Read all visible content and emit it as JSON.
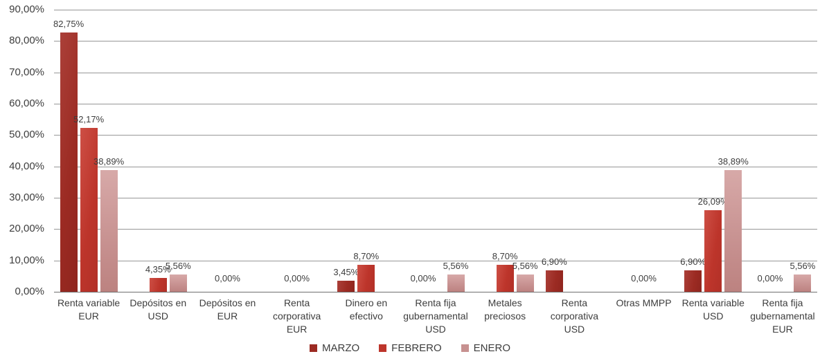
{
  "chart_data": {
    "type": "bar",
    "title": "",
    "xlabel": "",
    "ylabel": "",
    "grid": true,
    "legend_position": "bottom-center",
    "y_axis": {
      "min": 0,
      "max": 90,
      "step": 10,
      "tick_labels": [
        "0,00%",
        "10,00%",
        "20,00%",
        "30,00%",
        "40,00%",
        "50,00%",
        "60,00%",
        "70,00%",
        "80,00%",
        "90,00%"
      ]
    },
    "categories": [
      "Renta variable EUR",
      "Depósitos en USD",
      "Depósitos en EUR",
      "Renta corporativa EUR",
      "Dinero en efectivo",
      "Renta fija gubernamental USD",
      "Metales preciosos",
      "Renta corporativa USD",
      "Otras MMPP",
      "Renta variable USD",
      "Renta fija gubernamental EUR"
    ],
    "series": [
      {
        "name": "MARZO",
        "color": "#9c2b23",
        "values": [
          82.75,
          null,
          null,
          null,
          3.45,
          null,
          null,
          6.9,
          null,
          6.9,
          null
        ],
        "labels": [
          "82,75%",
          null,
          null,
          null,
          "3,45%",
          null,
          null,
          "6,90%",
          null,
          "6,90%",
          null
        ]
      },
      {
        "name": "FEBRERO",
        "color": "#bd352b",
        "values": [
          52.17,
          4.35,
          null,
          null,
          8.7,
          null,
          8.7,
          null,
          null,
          26.09,
          null
        ],
        "labels": [
          "52,17%",
          "4,35%",
          null,
          null,
          "8,70%",
          null,
          "8,70%",
          null,
          null,
          "26,09%",
          null
        ]
      },
      {
        "name": "ENERO",
        "color": "#c79190",
        "values": [
          38.89,
          5.56,
          null,
          null,
          null,
          5.56,
          5.56,
          null,
          null,
          38.89,
          5.56
        ],
        "labels": [
          "38,89%",
          "5,56%",
          null,
          null,
          null,
          "5,56%",
          "5,56%",
          null,
          null,
          "38,89%",
          "5,56%"
        ]
      }
    ],
    "zero_labels": [
      {
        "category_index": 2,
        "align": "center",
        "text": "0,00%"
      },
      {
        "category_index": 3,
        "align": "center",
        "text": "0,00%"
      },
      {
        "category_index": 5,
        "align": "left",
        "text": "0,00%"
      },
      {
        "category_index": 8,
        "align": "center",
        "text": "0,00%"
      },
      {
        "category_index": 10,
        "align": "left",
        "text": "0,00%"
      }
    ],
    "colors": {
      "marzo": "#9c2b23",
      "febrero": "#bd352b",
      "enero": "#c79190",
      "gridline": "#969696",
      "axis_line": "#6e6e6e",
      "text": "#3d3d3d"
    }
  }
}
